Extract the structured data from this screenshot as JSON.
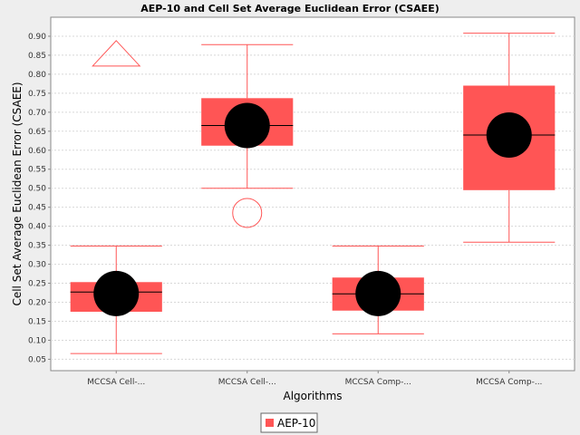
{
  "chart_data": {
    "type": "box",
    "title": "AEP-10 and Cell Set Average Euclidean Error (CSAEE)",
    "xlabel": "Algorithms",
    "ylabel": "Cell Set Average Euclidean Error (CSAEE)",
    "ylim": [
      0.02,
      0.95
    ],
    "yticks": [
      "0.05",
      "0.10",
      "0.15",
      "0.20",
      "0.25",
      "0.30",
      "0.35",
      "0.40",
      "0.45",
      "0.50",
      "0.55",
      "0.60",
      "0.65",
      "0.70",
      "0.75",
      "0.80",
      "0.85",
      "0.90"
    ],
    "grid": true,
    "categories": [
      "MCCSA Cell-...",
      "MCCSA Cell-...",
      "MCCSA Comp-...",
      "MCCSA Comp-..."
    ],
    "series": [
      {
        "name": "AEP-10",
        "color": "#ff5555",
        "boxes": [
          {
            "min": 0.065,
            "q1": 0.175,
            "median": 0.227,
            "q3": 0.253,
            "max": 0.348,
            "mean": 0.223,
            "outliers": [],
            "far_outliers": [
              0.855
            ]
          },
          {
            "min": 0.5,
            "q1": 0.612,
            "median": 0.665,
            "q3": 0.737,
            "max": 0.878,
            "mean": 0.665,
            "outliers": [
              0.435
            ],
            "far_outliers": []
          },
          {
            "min": 0.117,
            "q1": 0.178,
            "median": 0.222,
            "q3": 0.265,
            "max": 0.348,
            "mean": 0.223,
            "outliers": [],
            "far_outliers": []
          },
          {
            "min": 0.358,
            "q1": 0.495,
            "median": 0.64,
            "q3": 0.77,
            "max": 0.908,
            "mean": 0.64,
            "outliers": [],
            "far_outliers": []
          }
        ]
      }
    ],
    "legend_position": "bottom"
  }
}
